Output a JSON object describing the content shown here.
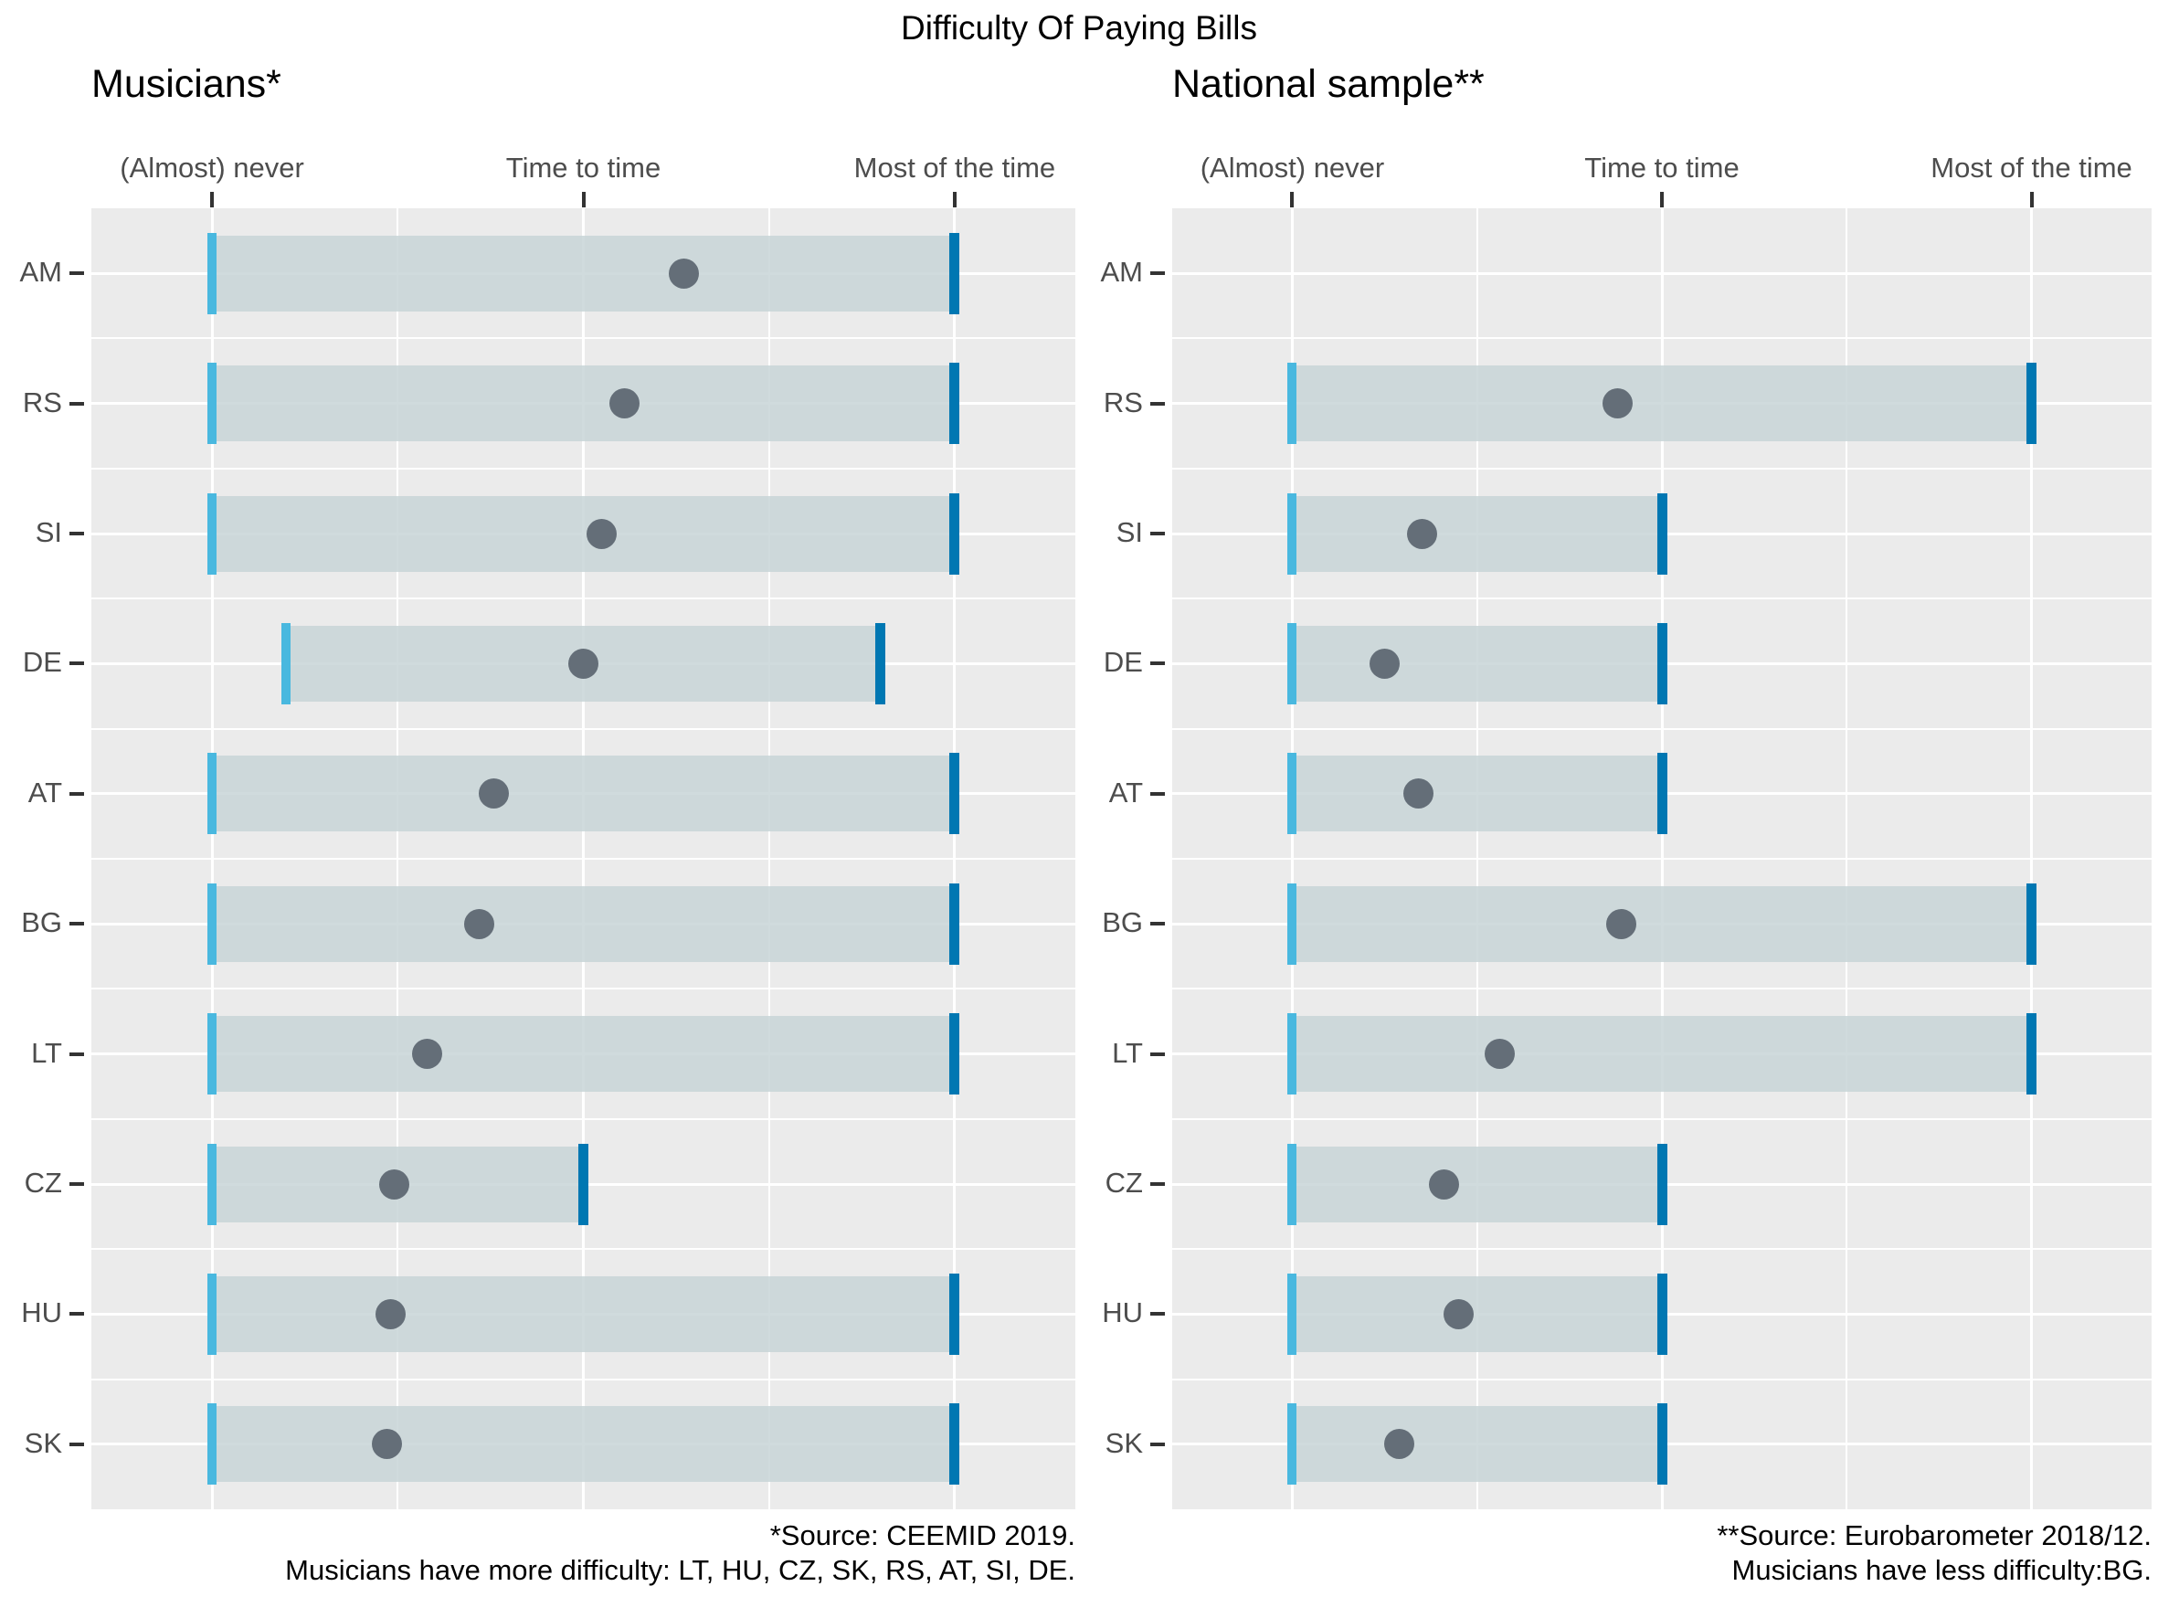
{
  "chart_data": {
    "type": "dumbbell-range",
    "title": "Difficulty Of Paying Bills",
    "x_categories": [
      "(Almost) never",
      "Time to time",
      "Most of the time"
    ],
    "x_category_values": [
      1,
      2,
      3
    ],
    "x_range": [
      0.675,
      3.325
    ],
    "grid": "on",
    "legend_position": "none",
    "countries": [
      "AM",
      "RS",
      "SI",
      "DE",
      "AT",
      "BG",
      "LT",
      "CZ",
      "HU",
      "SK"
    ],
    "panels": [
      {
        "title": "Musicians*",
        "footnote_line1": "*Source: CEEMID 2019.",
        "footnote_line2": "Musicians have more difficulty: LT, HU, CZ, SK, RS, AT, SI, DE.",
        "rows": [
          {
            "country": "AM",
            "min": 1.0,
            "max": 3.0,
            "mean": 2.27
          },
          {
            "country": "RS",
            "min": 1.0,
            "max": 3.0,
            "mean": 2.11
          },
          {
            "country": "SI",
            "min": 1.0,
            "max": 3.0,
            "mean": 2.05
          },
          {
            "country": "DE",
            "min": 1.2,
            "max": 2.8,
            "mean": 2.0
          },
          {
            "country": "AT",
            "min": 1.0,
            "max": 3.0,
            "mean": 1.76
          },
          {
            "country": "BG",
            "min": 1.0,
            "max": 3.0,
            "mean": 1.72
          },
          {
            "country": "LT",
            "min": 1.0,
            "max": 3.0,
            "mean": 1.58
          },
          {
            "country": "CZ",
            "min": 1.0,
            "max": 2.0,
            "mean": 1.49
          },
          {
            "country": "HU",
            "min": 1.0,
            "max": 3.0,
            "mean": 1.48
          },
          {
            "country": "SK",
            "min": 1.0,
            "max": 3.0,
            "mean": 1.47
          }
        ]
      },
      {
        "title": "National sample**",
        "footnote_line1": "**Source: Eurobarometer 2018/12.",
        "footnote_line2": "Musicians have less difficulty:BG.",
        "rows": [
          {
            "country": "AM",
            "min": null,
            "max": null,
            "mean": null
          },
          {
            "country": "RS",
            "min": 1.0,
            "max": 3.0,
            "mean": 1.88
          },
          {
            "country": "SI",
            "min": 1.0,
            "max": 2.0,
            "mean": 1.35
          },
          {
            "country": "DE",
            "min": 1.0,
            "max": 2.0,
            "mean": 1.25
          },
          {
            "country": "AT",
            "min": 1.0,
            "max": 2.0,
            "mean": 1.34
          },
          {
            "country": "BG",
            "min": 1.0,
            "max": 3.0,
            "mean": 1.89
          },
          {
            "country": "LT",
            "min": 1.0,
            "max": 3.0,
            "mean": 1.56
          },
          {
            "country": "CZ",
            "min": 1.0,
            "max": 2.0,
            "mean": 1.41
          },
          {
            "country": "HU",
            "min": 1.0,
            "max": 2.0,
            "mean": 1.45
          },
          {
            "country": "SK",
            "min": 1.0,
            "max": 2.0,
            "mean": 1.29
          }
        ]
      }
    ],
    "colors": {
      "panel_background": "#ebebeb",
      "gridline": "#ffffff",
      "range_bar_fill": "rgba(198,211,214,0.82)",
      "min_tick": "#49b8df",
      "max_tick": "#0077b2",
      "mean_dot": "#646e78",
      "axis_text": "#4d4d4d",
      "title_text": "#000000"
    }
  }
}
